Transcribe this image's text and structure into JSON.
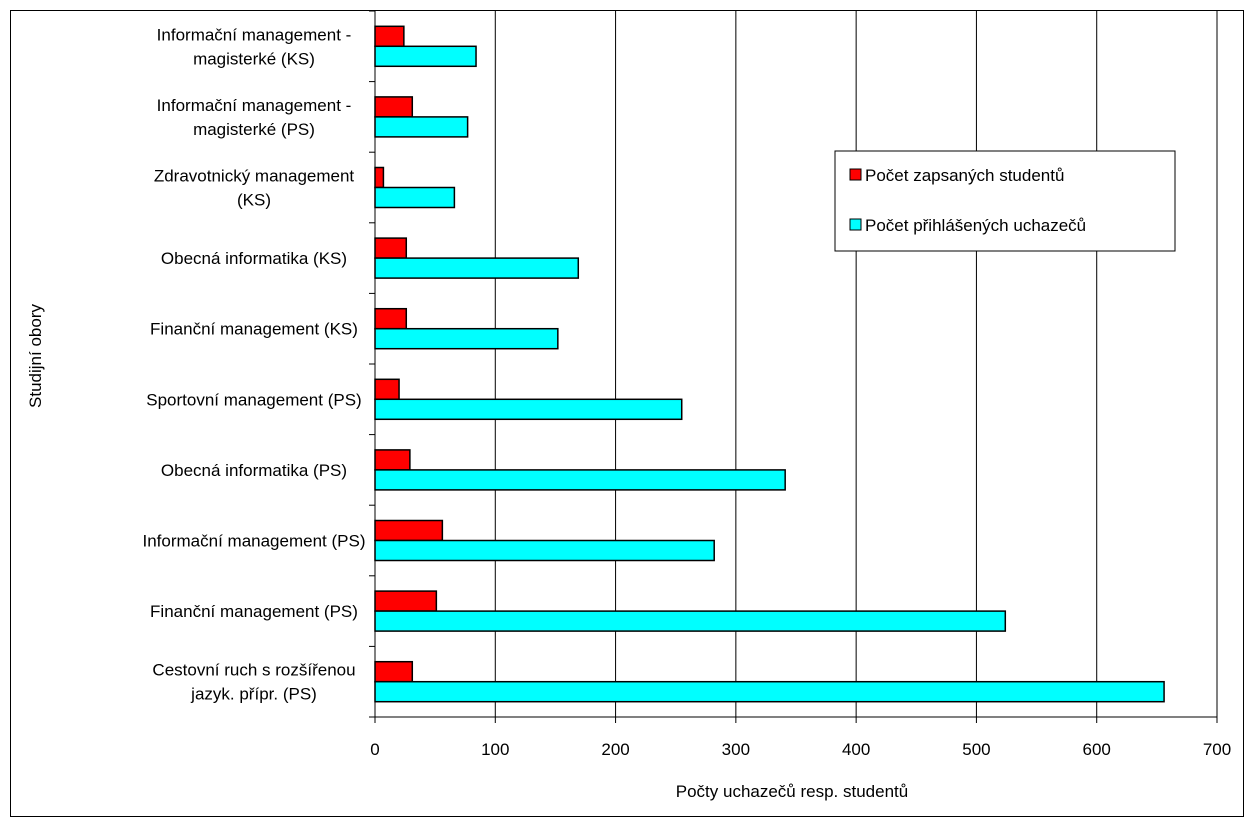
{
  "chart_data": {
    "type": "bar",
    "orientation": "horizontal",
    "title": "",
    "xlabel": "Počty uchazečů resp. studentů",
    "ylabel": "Studijní obory",
    "xlim": [
      0,
      700
    ],
    "xticks": [
      0,
      100,
      200,
      300,
      400,
      500,
      600,
      700
    ],
    "grid": "vertical",
    "legend_position": "top-right",
    "categories": [
      "Informační management - magisterké (KS)",
      "Informační management - magisterké (PS)",
      "Zdravotnický management (KS)",
      "Obecná informatika (KS)",
      "Finanční management (KS)",
      "Sportovní management (PS)",
      "Obecná informatika (PS)",
      "Informační management (PS)",
      "Finanční management (PS)",
      "Cestovní ruch s rozšířenou jazyk. přípr. (PS)"
    ],
    "category_lines": [
      [
        "Informační management -",
        "magisterké (KS)"
      ],
      [
        "Informační management -",
        "magisterké (PS)"
      ],
      [
        "Zdravotnický management",
        "(KS)"
      ],
      [
        "Obecná informatika (KS)"
      ],
      [
        "Finanční management (KS)"
      ],
      [
        "Sportovní management (PS)"
      ],
      [
        "Obecná informatika (PS)"
      ],
      [
        "Informační management (PS)"
      ],
      [
        "Finanční management (PS)"
      ],
      [
        "Cestovní ruch s rozšířenou",
        "jazyk. přípr. (PS)"
      ]
    ],
    "series": [
      {
        "name": "Počet zapsaných studentů",
        "color": "#ff0000",
        "values": [
          24,
          31,
          7,
          26,
          26,
          20,
          29,
          56,
          51,
          31
        ]
      },
      {
        "name": "Počet přihlášených uchazečů",
        "color": "#00ffff",
        "values": [
          84,
          77,
          66,
          169,
          152,
          255,
          341,
          282,
          524,
          656
        ]
      }
    ]
  }
}
